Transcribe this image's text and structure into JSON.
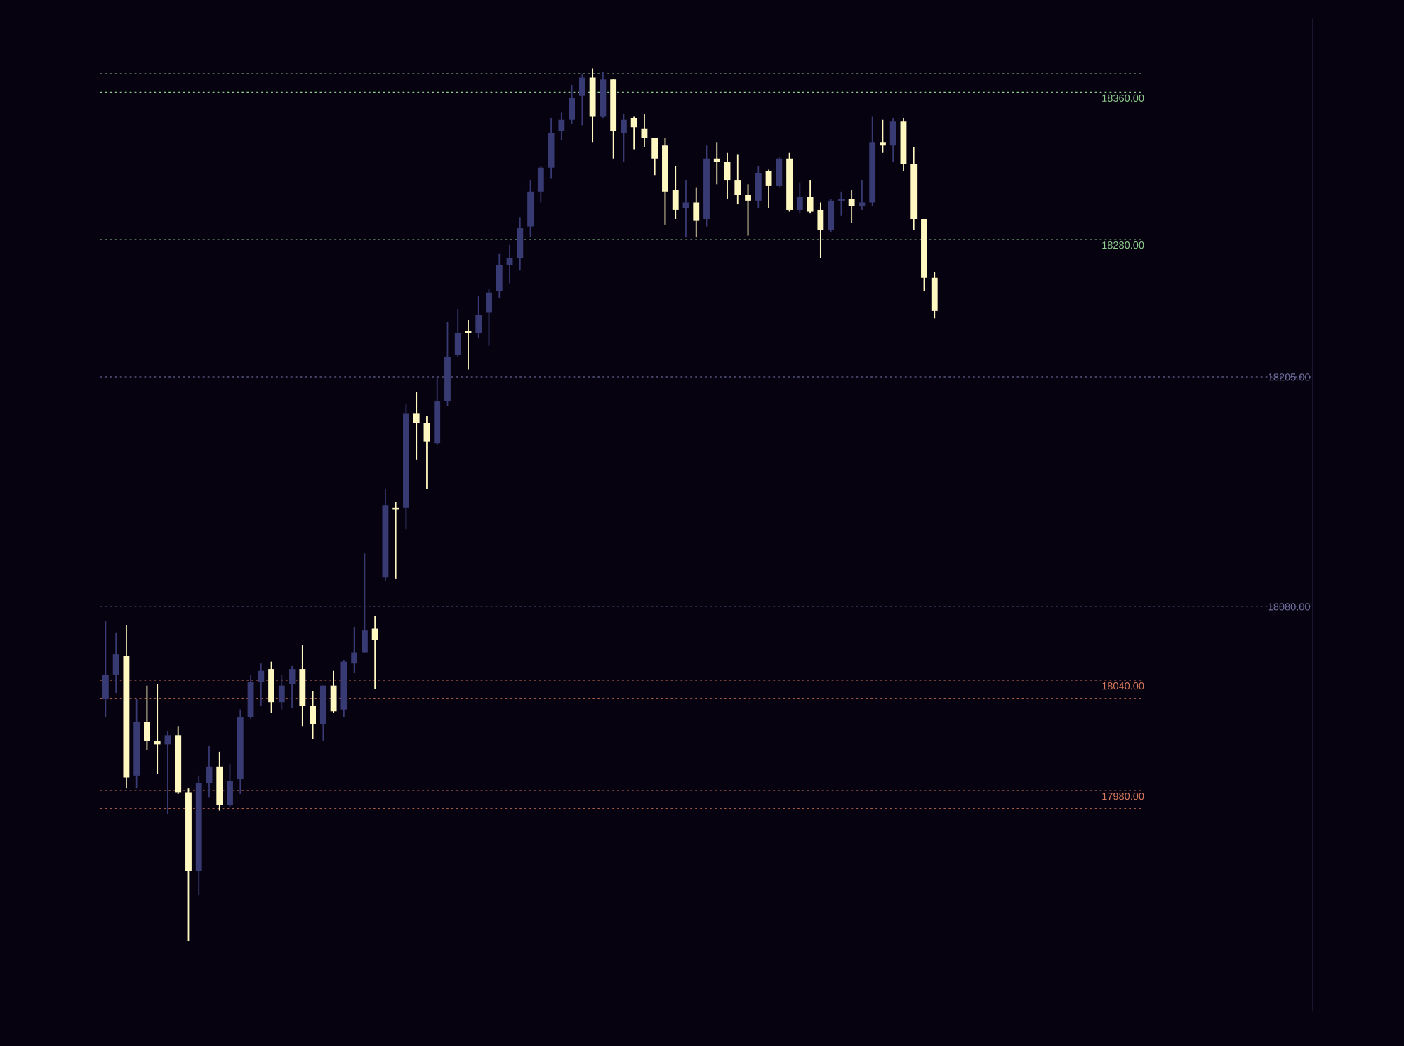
{
  "chart_data": {
    "type": "candlestick",
    "categories": [
      null,
      null,
      null,
      null,
      null,
      null,
      null,
      null,
      null,
      null,
      null,
      null,
      null,
      null,
      null,
      null,
      null,
      null,
      null,
      null,
      null,
      null,
      null,
      null,
      null,
      null,
      null,
      null,
      null,
      null,
      null,
      null,
      null,
      null,
      null,
      null,
      null,
      null,
      null,
      null,
      null,
      null,
      null,
      null,
      null,
      null,
      null,
      null,
      null,
      null,
      null,
      null,
      null,
      null,
      null,
      null,
      null,
      null,
      null,
      null,
      null,
      null,
      null,
      null,
      null,
      null,
      null,
      null,
      null,
      null,
      null,
      null,
      null,
      null,
      null,
      null,
      null,
      null,
      null,
      null,
      null,
      null,
      null,
      null,
      null,
      null,
      null,
      null,
      null,
      null,
      null,
      null,
      null,
      null,
      null,
      null,
      null,
      null,
      null,
      null,
      null,
      null,
      null,
      null,
      null,
      null,
      null,
      null,
      null,
      null,
      null,
      null,
      null,
      null,
      null,
      null,
      null
    ],
    "ohlc": [
      [
        18030,
        18072,
        18020,
        18043
      ],
      [
        18043,
        18066,
        18033,
        18054
      ],
      [
        18053,
        18070,
        17981,
        17987
      ],
      [
        17988,
        18030,
        17981,
        18017
      ],
      [
        18017,
        18037,
        18002,
        18007
      ],
      [
        18007,
        18038,
        17989,
        18005
      ],
      [
        18005,
        18012,
        17967,
        18010
      ],
      [
        18010,
        18015,
        17978,
        17979
      ],
      [
        17979,
        17981,
        17898,
        17936
      ],
      [
        17936,
        17988,
        17923,
        17984
      ],
      [
        17984,
        18004,
        17976,
        17993
      ],
      [
        17993,
        18001,
        17969,
        17972
      ],
      [
        17972,
        17994,
        17971,
        17985
      ],
      [
        17986,
        18024,
        17978,
        18020
      ],
      [
        18020,
        18043,
        18019,
        18039
      ],
      [
        18039,
        18049,
        18026,
        18045
      ],
      [
        18046,
        18050,
        18022,
        18028
      ],
      [
        18028,
        18043,
        18024,
        18037
      ],
      [
        18038,
        18048,
        18025,
        18046
      ],
      [
        18046,
        18059,
        18015,
        18026
      ],
      [
        18026,
        18034,
        18008,
        18016
      ],
      [
        18016,
        18037,
        18007,
        18037
      ],
      [
        18037,
        18045,
        18022,
        18023
      ],
      [
        18024,
        18051,
        18020,
        18050
      ],
      [
        18049,
        18069,
        18044,
        18055
      ],
      [
        18055,
        18109,
        18055,
        18067
      ],
      [
        18068,
        18075,
        18035,
        18062
      ],
      [
        18096,
        18144,
        18094,
        18135
      ],
      [
        18134,
        18137,
        18095,
        18133
      ],
      [
        18134,
        18190,
        18122,
        18185
      ],
      [
        18185,
        18197,
        18160,
        18180
      ],
      [
        18180,
        18184,
        18144,
        18170
      ],
      [
        18169,
        18205,
        18168,
        18192
      ],
      [
        18192,
        18235,
        18189,
        18216
      ],
      [
        18217,
        18242,
        18216,
        18229
      ],
      [
        18230,
        18236,
        18209,
        18229
      ],
      [
        18229,
        18249,
        18226,
        18239
      ],
      [
        18240,
        18253,
        18222,
        18251
      ],
      [
        18252,
        18272,
        18248,
        18266
      ],
      [
        18266,
        18277,
        18256,
        18270
      ],
      [
        18270,
        18292,
        18263,
        18286
      ],
      [
        18287,
        18312,
        18281,
        18306
      ],
      [
        18306,
        18320,
        18300,
        18319
      ],
      [
        18319,
        18346,
        18313,
        18338
      ],
      [
        18339,
        18349,
        18334,
        18345
      ],
      [
        18345,
        18364,
        18343,
        18357
      ],
      [
        18358,
        18370,
        18342,
        18368
      ],
      [
        18368,
        18373,
        18333,
        18347
      ],
      [
        18347,
        18371,
        18346,
        18367
      ],
      [
        18367,
        18367,
        18324,
        18339
      ],
      [
        18338,
        18348,
        18322,
        18345
      ],
      [
        18346,
        18347,
        18329,
        18341
      ],
      [
        18340,
        18348,
        18330,
        18335
      ],
      [
        18335,
        18335,
        18315,
        18324
      ],
      [
        18331,
        18335,
        18288,
        18306
      ],
      [
        18307,
        18320,
        18291,
        18296
      ],
      [
        18297,
        18312,
        18281,
        18300
      ],
      [
        18300,
        18308,
        18281,
        18290
      ],
      [
        18291,
        18331,
        18287,
        18324
      ],
      [
        18324,
        18333,
        18310,
        18322
      ],
      [
        18322,
        18327,
        18302,
        18312
      ],
      [
        18312,
        18326,
        18299,
        18304
      ],
      [
        18304,
        18310,
        18282,
        18301
      ],
      [
        18301,
        18320,
        18297,
        18316
      ],
      [
        18317,
        18318,
        18297,
        18309
      ],
      [
        18309,
        18325,
        18308,
        18324
      ],
      [
        18324,
        18327,
        18295,
        18296
      ],
      [
        18296,
        18311,
        18294,
        18303
      ],
      [
        18303,
        18312,
        18294,
        18295
      ],
      [
        18296,
        18300,
        18270,
        18285
      ],
      [
        18285,
        18302,
        18284,
        18301
      ],
      [
        18301,
        18306,
        18293,
        18302
      ],
      [
        18302,
        18307,
        18289,
        18298
      ],
      [
        18298,
        18312,
        18296,
        18300
      ],
      [
        18300,
        18347,
        18298,
        18333
      ],
      [
        18333,
        18345,
        18327,
        18331
      ],
      [
        18331,
        18346,
        18322,
        18344
      ],
      [
        18344,
        18346,
        18317,
        18321
      ],
      [
        18321,
        18330,
        18285,
        18291
      ],
      [
        18291,
        18291,
        18252,
        18259
      ],
      [
        18259,
        18262,
        18237,
        18241
      ],
      null,
      null,
      null,
      null,
      null,
      null,
      null,
      null,
      null,
      null,
      null,
      null,
      null,
      null,
      null,
      null,
      null,
      null,
      null,
      null,
      null,
      null,
      null,
      null,
      null,
      null,
      null,
      null,
      null,
      null,
      null,
      null,
      null,
      null,
      null,
      null
    ],
    "colors": [
      "#383a73",
      "#383a73",
      "#fff8c0",
      "#383a73",
      "#fff8c0",
      "#fff8c0",
      "#383a73",
      "#fff8c0",
      "#fff8c0",
      "#383a73",
      "#383a73",
      "#fff8c0",
      "#383a73",
      "#383a73",
      "#383a73",
      "#383a73",
      "#fff8c0",
      "#383a73",
      "#383a73",
      "#fff8c0",
      "#fff8c0",
      "#383a73",
      "#fff8c0",
      "#383a73",
      "#383a73",
      "#383a73",
      "#fff8c0",
      "#383a73",
      "#fff8c0",
      "#383a73",
      "#fff8c0",
      "#fff8c0",
      "#383a73",
      "#383a73",
      "#383a73",
      "#fff8c0",
      "#383a73",
      "#383a73",
      "#383a73",
      "#383a73",
      "#383a73",
      "#383a73",
      "#383a73",
      "#383a73",
      "#383a73",
      "#383a73",
      "#383a73",
      "#fff8c0",
      "#383a73",
      "#fff8c0",
      "#383a73",
      "#fff8c0",
      "#fff8c0",
      "#fff8c0",
      "#fff8c0",
      "#fff8c0",
      "#383a73",
      "#fff8c0",
      "#383a73",
      "#fff8c0",
      "#fff8c0",
      "#fff8c0",
      "#fff8c0",
      "#383a73",
      "#fff8c0",
      "#383a73",
      "#fff8c0",
      "#383a73",
      "#fff8c0",
      "#fff8c0",
      "#383a73",
      "#383a73",
      "#fff8c0",
      "#383a73",
      "#383a73",
      "#fff8c0",
      "#383a73",
      "#fff8c0",
      "#fff8c0",
      "#fff8c0",
      "#fff8c0",
      null,
      null,
      null,
      null,
      null,
      null,
      null,
      null,
      null,
      null,
      null,
      null,
      null,
      null,
      null,
      null,
      null,
      null,
      null,
      null,
      null,
      null,
      null,
      null,
      null,
      null,
      null,
      null,
      null,
      null,
      null,
      null,
      null,
      null,
      null,
      null
    ],
    "ylim": [
      17860,
      18400
    ],
    "yticks": [
      {
        "value": 18205,
        "label": "18205.00"
      },
      {
        "value": 18080,
        "label": "18080.00"
      }
    ],
    "grid": "y",
    "tick_labels": "y",
    "ref_lines": [
      {
        "axis": "y",
        "value": 18370,
        "label": null,
        "color": "#8fcf9a",
        "line_style": "dotted"
      },
      {
        "axis": "y",
        "value": 18360,
        "label": "18360.00",
        "color": "#8fcf8f",
        "line_style": "dotted"
      },
      {
        "axis": "y",
        "value": 18280,
        "label": "18280.00",
        "color": "#8fcf8f",
        "line_style": "dotted"
      },
      {
        "axis": "y",
        "value": 18040,
        "label": "18040.00",
        "color": "#d87a5e",
        "line_style": "dotted"
      },
      {
        "axis": "y",
        "value": 18030,
        "label": null,
        "color": "#d87a5e",
        "line_style": "dotted"
      },
      {
        "axis": "y",
        "value": 17980,
        "label": "17980.00",
        "color": "#d87a5e",
        "line_style": "dotted"
      },
      {
        "axis": "y",
        "value": 17970,
        "label": null,
        "color": "#d87a5e",
        "line_style": "dotted"
      }
    ]
  }
}
